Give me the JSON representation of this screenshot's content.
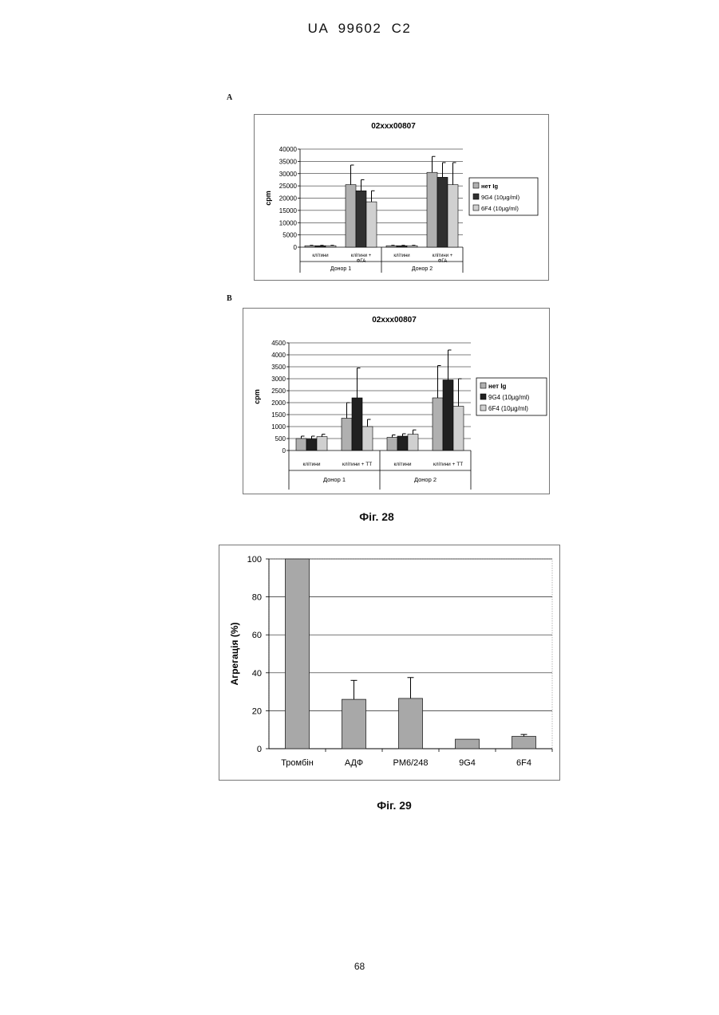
{
  "header": {
    "title": "UA   99602   C2"
  },
  "fig28": {
    "caption": "Фіг. 28",
    "panelA_label": "A",
    "panelB_label": "B"
  },
  "fig29": {
    "caption": "Фіг. 29"
  },
  "page_number": "68",
  "chart_data": [
    {
      "type": "bar",
      "title": "02xxx00807",
      "ylabel": "cpm",
      "xlabel": "",
      "ylim": [
        0,
        40000
      ],
      "yticks": [
        "0",
        "5000",
        "10000",
        "15000",
        "20000",
        "25000",
        "30000",
        "35000",
        "40000"
      ],
      "categories": [
        "клітини",
        "клітини + ФГА",
        "клітини",
        "клітини + ФГА"
      ],
      "groups": [
        "Донор 1",
        "Донор 2"
      ],
      "series": [
        {
          "name": "нет Ig",
          "color": "#b0b0b0",
          "values": [
            600,
            25500,
            600,
            30500
          ],
          "errors": [
            150,
            8000,
            150,
            6500
          ]
        },
        {
          "name": "9G4  (10µg/ml)",
          "color": "#303030",
          "values": [
            600,
            23000,
            600,
            28500
          ],
          "errors": [
            150,
            4500,
            150,
            6000
          ]
        },
        {
          "name": "6F4  (10µg/ml)",
          "color": "#d0d0d0",
          "values": [
            600,
            18500,
            600,
            25500
          ],
          "errors": [
            150,
            4500,
            150,
            9000
          ]
        }
      ],
      "legend": "right",
      "grid": true
    },
    {
      "type": "bar",
      "title": "02xxx00807",
      "ylabel": "cpm",
      "xlabel": "",
      "ylim": [
        0,
        4500
      ],
      "yticks": [
        "0",
        "500",
        "1000",
        "1500",
        "2000",
        "2500",
        "3000",
        "3500",
        "4000",
        "4500"
      ],
      "categories": [
        "клітини",
        "клітини + ТТ",
        "клітини",
        "клітини + ТТ"
      ],
      "groups": [
        "Донор 1",
        "Донор 2"
      ],
      "series": [
        {
          "name": "нет Ig",
          "color": "#b0b0b0",
          "values": [
            500,
            1350,
            550,
            2200
          ],
          "errors": [
            100,
            650,
            100,
            1350
          ]
        },
        {
          "name": "9G4  (10µg/ml)",
          "color": "#202020",
          "values": [
            480,
            2200,
            600,
            2950
          ],
          "errors": [
            120,
            1250,
            100,
            1250
          ]
        },
        {
          "name": "6F4  (10µg/ml)",
          "color": "#d0d0d0",
          "values": [
            580,
            1000,
            680,
            1850
          ],
          "errors": [
            100,
            300,
            180,
            1150
          ]
        }
      ],
      "legend": "right",
      "grid": true
    },
    {
      "type": "bar",
      "title": "",
      "ylabel": "Агрегація  (%)",
      "xlabel": "",
      "ylim": [
        0,
        100
      ],
      "yticks": [
        "0",
        "20",
        "40",
        "60",
        "80",
        "100"
      ],
      "categories": [
        "Тромбін",
        "АДФ",
        "PM6/248",
        "9G4",
        "6F4"
      ],
      "series": [
        {
          "name": "",
          "color": "#a8a8a8",
          "values": [
            100,
            26,
            26.5,
            5,
            6.5
          ],
          "errors": [
            0,
            10,
            11,
            0,
            1
          ]
        }
      ],
      "grid": true
    }
  ]
}
